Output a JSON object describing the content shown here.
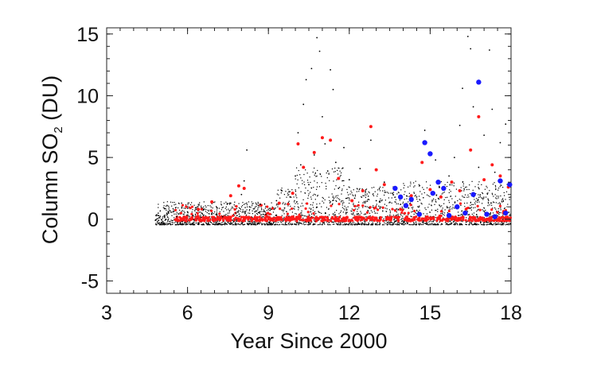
{
  "chart_data": {
    "type": "scatter",
    "title": "",
    "xlabel": "Year Since 2000",
    "ylabel": {
      "prefix": "Column SO",
      "subscript": "2",
      "suffix": " (DU)"
    },
    "xlim": [
      3,
      18
    ],
    "ylim": [
      -6,
      15.5
    ],
    "xticks": [
      {
        "value": 3,
        "label": "3"
      },
      {
        "value": 6,
        "label": "6"
      },
      {
        "value": 9,
        "label": "9"
      },
      {
        "value": 12,
        "label": "12"
      },
      {
        "value": 15,
        "label": "15"
      },
      {
        "value": 18,
        "label": "18"
      }
    ],
    "yticks": [
      {
        "value": -5,
        "label": "-5"
      },
      {
        "value": 0,
        "label": "0"
      },
      {
        "value": 5,
        "label": "5"
      },
      {
        "value": 10,
        "label": "10"
      },
      {
        "value": 15,
        "label": "15"
      }
    ],
    "grid": false,
    "legend": "none",
    "series": [
      {
        "color": "#000000",
        "marker": "small-dot",
        "points": [
          [
            4.9,
            0.3
          ],
          [
            5.1,
            -0.3
          ],
          [
            5.3,
            0.5
          ],
          [
            5.6,
            0.2
          ],
          [
            5.8,
            -0.2
          ],
          [
            6.0,
            0.6
          ],
          [
            6.2,
            0.3
          ],
          [
            6.4,
            -0.3
          ],
          [
            6.6,
            0.8
          ],
          [
            6.9,
            0.4
          ],
          [
            7.1,
            0.9
          ],
          [
            7.3,
            0.2
          ],
          [
            7.6,
            1.3
          ],
          [
            7.8,
            0.5
          ],
          [
            8.0,
            2.0
          ],
          [
            8.1,
            3.1
          ],
          [
            8.2,
            5.6
          ],
          [
            8.3,
            1.0
          ],
          [
            8.5,
            0.6
          ],
          [
            8.7,
            1.2
          ],
          [
            8.9,
            0.4
          ],
          [
            9.1,
            0.8
          ],
          [
            9.3,
            1.5
          ],
          [
            9.5,
            2.3
          ],
          [
            9.6,
            0.9
          ],
          [
            9.8,
            1.8
          ],
          [
            10.0,
            3.5
          ],
          [
            10.1,
            7.0
          ],
          [
            10.2,
            4.4
          ],
          [
            10.3,
            9.3
          ],
          [
            10.4,
            11.3
          ],
          [
            10.5,
            2.8
          ],
          [
            10.6,
            12.2
          ],
          [
            10.7,
            5.2
          ],
          [
            10.8,
            14.7
          ],
          [
            10.9,
            13.6
          ],
          [
            11.0,
            8.3
          ],
          [
            11.1,
            6.1
          ],
          [
            11.2,
            3.9
          ],
          [
            11.3,
            12.1
          ],
          [
            11.4,
            10.5
          ],
          [
            11.5,
            4.6
          ],
          [
            11.6,
            2.5
          ],
          [
            11.8,
            5.8
          ],
          [
            12.0,
            3.2
          ],
          [
            12.2,
            1.7
          ],
          [
            12.4,
            4.1
          ],
          [
            12.6,
            2.2
          ],
          [
            12.8,
            6.4
          ],
          [
            13.0,
            1.5
          ],
          [
            13.3,
            3.0
          ],
          [
            13.6,
            2.1
          ],
          [
            13.9,
            1.2
          ],
          [
            14.2,
            0.9
          ],
          [
            14.5,
            1.8
          ],
          [
            14.8,
            7.2
          ],
          [
            15.0,
            2.4
          ],
          [
            15.2,
            4.8
          ],
          [
            15.5,
            2.6
          ],
          [
            15.7,
            3.5
          ],
          [
            15.9,
            5.0
          ],
          [
            16.1,
            7.6
          ],
          [
            16.2,
            10.6
          ],
          [
            16.4,
            14.8
          ],
          [
            16.5,
            13.8
          ],
          [
            16.6,
            9.1
          ],
          [
            16.8,
            4.2
          ],
          [
            17.0,
            6.8
          ],
          [
            17.2,
            13.7
          ],
          [
            17.3,
            8.9
          ],
          [
            17.4,
            3.8
          ],
          [
            17.6,
            6.2
          ],
          [
            17.8,
            7.7
          ],
          [
            17.9,
            2.7
          ]
        ]
      },
      {
        "color": "#ff1a1a",
        "marker": "dot",
        "points": [
          [
            5.6,
            0.0
          ],
          [
            6.4,
            0.8
          ],
          [
            6.9,
            1.4
          ],
          [
            7.6,
            1.9
          ],
          [
            7.9,
            2.7
          ],
          [
            8.1,
            2.5
          ],
          [
            9.4,
            1.3
          ],
          [
            9.9,
            2.1
          ],
          [
            10.1,
            6.1
          ],
          [
            10.3,
            4.2
          ],
          [
            10.7,
            5.4
          ],
          [
            11.0,
            6.6
          ],
          [
            11.3,
            6.4
          ],
          [
            11.6,
            3.3
          ],
          [
            12.1,
            1.5
          ],
          [
            12.5,
            2.3
          ],
          [
            12.8,
            7.5
          ],
          [
            13.0,
            4.0
          ],
          [
            13.3,
            2.8
          ],
          [
            13.9,
            0.8
          ],
          [
            14.3,
            1.9
          ],
          [
            14.7,
            4.6
          ],
          [
            15.0,
            2.4
          ],
          [
            15.4,
            1.8
          ],
          [
            15.8,
            3.0
          ],
          [
            16.1,
            2.3
          ],
          [
            16.5,
            5.6
          ],
          [
            16.8,
            8.3
          ],
          [
            17.0,
            3.2
          ],
          [
            17.3,
            4.4
          ],
          [
            17.6,
            3.5
          ],
          [
            17.9,
            2.6
          ]
        ]
      },
      {
        "color": "#1a1aff",
        "marker": "large-dot",
        "points": [
          [
            13.7,
            2.5
          ],
          [
            13.9,
            1.8
          ],
          [
            14.1,
            1.1
          ],
          [
            14.3,
            1.6
          ],
          [
            14.6,
            0.4
          ],
          [
            14.8,
            6.2
          ],
          [
            15.0,
            5.3
          ],
          [
            15.1,
            2.1
          ],
          [
            15.3,
            3.0
          ],
          [
            15.5,
            2.5
          ],
          [
            15.7,
            0.3
          ],
          [
            16.0,
            1.0
          ],
          [
            16.3,
            0.5
          ],
          [
            16.6,
            2.0
          ],
          [
            16.8,
            11.1
          ],
          [
            17.1,
            0.4
          ],
          [
            17.4,
            0.2
          ],
          [
            17.6,
            3.1
          ],
          [
            17.8,
            0.5
          ],
          [
            17.95,
            2.8
          ]
        ]
      }
    ]
  }
}
